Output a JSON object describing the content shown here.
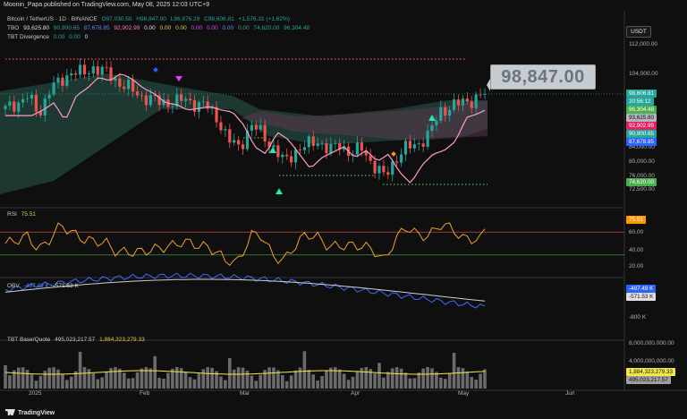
{
  "header": {
    "published_line": "Moonin_Papa published on TradingView.com, May 08, 2025 12:03 UTC+9"
  },
  "main_pane": {
    "symbol_line": {
      "title": "Bitcoin / TetherUS · 1D · BINANCE",
      "open": "O97,030.50",
      "high": "H98,847.00",
      "low": "L96,876.29",
      "close": "C98,606.81",
      "change": "+1,576.31 (+1.62%)"
    },
    "tbo_line": {
      "name": "TBO",
      "v1": "93,625.80",
      "v2": "90,900.65",
      "v3": "87,678.85",
      "v4": "92,902.99",
      "v5": "0.00",
      "v6": "0.00",
      "v7": "0.00",
      "v8": "0.00",
      "v9": "0.00",
      "v10": "0.00",
      "v11": "0.00",
      "v12": "74,620.00",
      "v13": "96,304.48"
    },
    "div_line": {
      "name": "TBT Divergence",
      "v1": "0.00",
      "v2": "0.00",
      "v3": "0"
    },
    "currency": "USDT",
    "price_callout": "98,847.00",
    "price_axis": [
      {
        "label": "112,000.00",
        "value": 112000
      },
      {
        "label": "104,000.00",
        "value": 104000
      },
      {
        "label": "84,000.00",
        "value": 84000
      },
      {
        "label": "80,000.00",
        "value": 80000
      },
      {
        "label": "76,000.00",
        "value": 76000
      },
      {
        "label": "72,500.00",
        "value": 72500
      }
    ],
    "price_tags": [
      {
        "label": "98,606.81",
        "value": 98606.81,
        "color": "#26a69a"
      },
      {
        "label": "20:56:12",
        "value": 97300,
        "color": "#26a69a"
      },
      {
        "label": "96,304.48",
        "value": 96304.48,
        "color": "#4caf50"
      },
      {
        "label": "93,625.80",
        "value": 93625.8,
        "color": "#b2b5be"
      },
      {
        "label": "92,902.99",
        "value": 92902.99,
        "color": "#e91e63"
      },
      {
        "label": "90,900.65",
        "value": 90900.65,
        "color": "#26a69a"
      },
      {
        "label": "87,678.85",
        "value": 87678.85,
        "color": "#2962ff"
      },
      {
        "label": "74,620.00",
        "value": 74620,
        "color": "#4caf50"
      }
    ]
  },
  "rsi_pane": {
    "label": "RSI",
    "value": "75.51",
    "axis": [
      "60.00",
      "40.00",
      "20.00"
    ],
    "tag": "75.51"
  },
  "obv_pane": {
    "label": "OBV",
    "v1": "-497.49 K",
    "v2": "-571.53 K",
    "axis": [
      "-800 K"
    ],
    "tags": [
      "-497.49 K",
      "-571.53 K"
    ]
  },
  "volume_pane": {
    "label": "TBT Base/Quote",
    "v1": "495,023,217.57",
    "v2": "1,884,323,279.33",
    "axis": [
      "8,000,000,000.00",
      "4,000,000,000.00"
    ],
    "tags": [
      "1,884,323,279.33",
      "495,023,217.57"
    ]
  },
  "time_axis": [
    "2025",
    "Feb",
    "Mar",
    "Apr",
    "May",
    "Jun"
  ],
  "footer": {
    "brand": "TradingView"
  },
  "colors": {
    "up": "#26a69a",
    "down": "#ef5350",
    "background": "#0f0f0f",
    "accent_pink": "#ff7ab8"
  },
  "chart_data": {
    "type": "candlestick",
    "symbol": "BTCUSDT",
    "interval": "1D",
    "y_range": [
      70000,
      114000
    ],
    "approx_close_path": [
      94500,
      96000,
      98000,
      93000,
      100000,
      102000,
      105000,
      104000,
      106000,
      104500,
      102000,
      100500,
      98000,
      97500,
      96000,
      96500,
      97000,
      96000,
      95500,
      92000,
      86000,
      84000,
      90000,
      88000,
      84000,
      80000,
      83000,
      84500,
      86000,
      83000,
      85000,
      82000,
      84000,
      79000,
      76000,
      81000,
      84000,
      85000,
      87500,
      94000,
      95000,
      96500,
      97000,
      98606.81
    ],
    "rsi_range": [
      0,
      100
    ],
    "rsi_last": 75.51
  }
}
